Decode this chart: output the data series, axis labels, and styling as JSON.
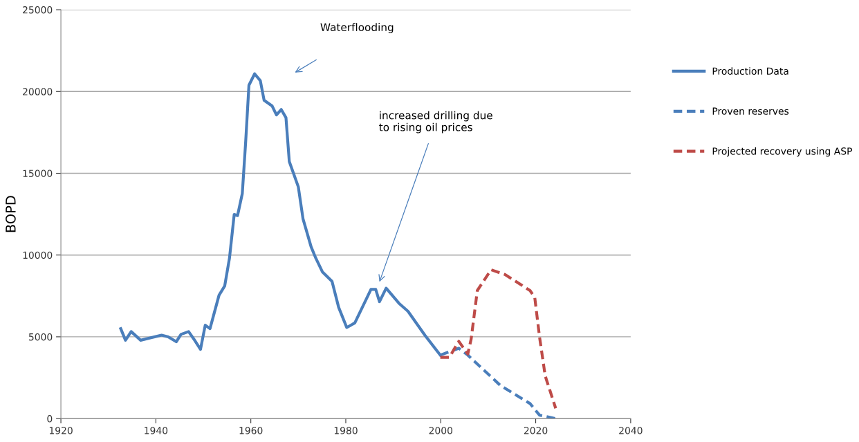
{
  "chart_data": {
    "type": "line",
    "ylabel": "BOPD",
    "xlim": [
      1920,
      2040
    ],
    "xticks": [
      1920,
      1940,
      1960,
      1980,
      2000,
      2020,
      2040
    ],
    "ylim": [
      0,
      25000
    ],
    "yticks": [
      0,
      5000,
      10000,
      15000,
      20000,
      25000
    ],
    "grid": "y",
    "legend": "right",
    "series": [
      {
        "name": "Production Data",
        "color": "#4a7ebb",
        "line_style": "solid",
        "x": [
          1932.6,
          1933.6,
          1934.8,
          1936.8,
          1941.2,
          1942.6,
          1944.3,
          1945.3,
          1946.9,
          1948.0,
          1949.4,
          1950.4,
          1951.4,
          1953.3,
          1954.5,
          1955.5,
          1956.5,
          1957.2,
          1958.2,
          1958.9,
          1959.6,
          1960.8,
          1962.0,
          1962.8,
          1964.5,
          1965.4,
          1966.4,
          1967.4,
          1968.1,
          1970.0,
          1971.0,
          1972.7,
          1973.7,
          1975.1,
          1977.1,
          1978.5,
          1980.2,
          1981.9,
          1985.3,
          1986.3,
          1987.1,
          1988.5,
          1991.2,
          1993.1,
          1995.0,
          1996.7,
          1999.9
        ],
        "values": [
          5500,
          4790,
          5320,
          4790,
          5100,
          5000,
          4700,
          5150,
          5320,
          4860,
          4230,
          5710,
          5500,
          7540,
          8110,
          9800,
          12480,
          12410,
          13750,
          16850,
          20380,
          21080,
          20660,
          19460,
          19110,
          18570,
          18900,
          18400,
          15720,
          14170,
          12200,
          10500,
          9800,
          8960,
          8390,
          6800,
          5570,
          5850,
          7900,
          7900,
          7150,
          7970,
          7050,
          6560,
          5780,
          5080,
          3880
        ]
      },
      {
        "name": "Proven reserves",
        "color": "#4a7ebb",
        "line_style": "dashed",
        "x": [
          1999.9,
          2003.8,
          2005.7,
          2012.5,
          2018.8,
          2020.8,
          2024.2
        ],
        "values": [
          3880,
          4300,
          3880,
          2040,
          920,
          210,
          0
        ]
      },
      {
        "name": "Projected recovery using ASP",
        "color": "#be4b48",
        "line_style": "dashed",
        "x": [
          1999.9,
          2001.8,
          2003.8,
          2005.7,
          2006.4,
          2007.7,
          2010.6,
          2013.5,
          2018.8,
          2019.8,
          2020.8,
          2022.0,
          2024.2
        ],
        "values": [
          3740,
          3740,
          4720,
          3950,
          4860,
          7830,
          9100,
          8810,
          7830,
          7400,
          5000,
          2610,
          630
        ]
      }
    ],
    "annotations": [
      "Waterflooding",
      "increased drilling due\nto rising oil prices"
    ]
  }
}
